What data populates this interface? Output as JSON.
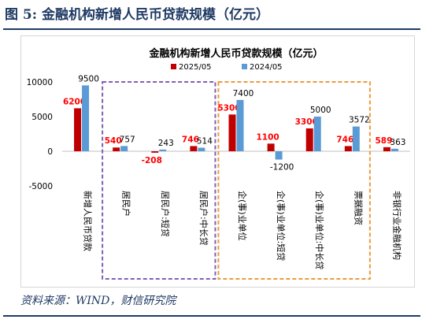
{
  "figure": {
    "title": "图 5:  金融机构新增人民币贷款规模（亿元）",
    "source": "资料来源：WIND，财信研究院"
  },
  "colors": {
    "series_2025": "#c00000",
    "series_2024": "#5b9bd5",
    "label_2025": "#ff0000",
    "axis": "#404040",
    "box_purple": "#7f5fb5",
    "box_orange": "#ed9a3c",
    "frame": "#1f3a63"
  },
  "chart_data": {
    "type": "bar",
    "title": "金融机构新增人民币贷款规模（亿元）",
    "xlabel": "",
    "ylabel": "",
    "ylim": [
      -5000,
      10000
    ],
    "yticks": [
      -5000,
      0,
      5000,
      10000
    ],
    "grid": false,
    "legend_position": "top",
    "categories": [
      "新增人民币贷款",
      "居民户",
      "居民户:短贷",
      "居民户:中长贷",
      "企(事)业单位",
      "企(事)业单位:短贷",
      "企(事)业单位:中长贷",
      "票据融资",
      "非银行业金融机构"
    ],
    "series": [
      {
        "name": "2025/05",
        "values": [
          6200,
          540,
          -208,
          746,
          5300,
          1100,
          3300,
          746,
          589
        ]
      },
      {
        "name": "2024/05",
        "values": [
          9500,
          757,
          243,
          514,
          7400,
          -1200,
          5000,
          3572,
          363
        ]
      }
    ],
    "group_boxes": [
      {
        "style": "dashed",
        "color": "purple",
        "categories": [
          1,
          2,
          3
        ]
      },
      {
        "style": "dashed",
        "color": "orange",
        "categories": [
          4,
          5,
          6,
          7
        ]
      }
    ]
  }
}
